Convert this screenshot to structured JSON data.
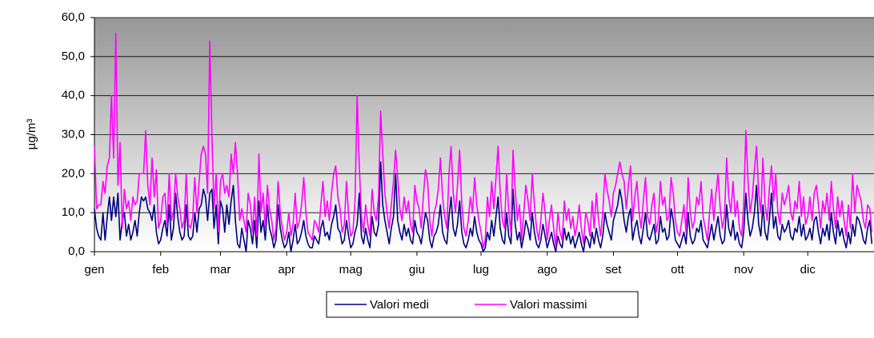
{
  "chart_data": {
    "type": "line",
    "ylabel": "µg/m³",
    "ylim": [
      0,
      60
    ],
    "yticks": [
      {
        "value": 0,
        "label": "0,0"
      },
      {
        "value": 10,
        "label": "10,0"
      },
      {
        "value": 20,
        "label": "20,0"
      },
      {
        "value": 30,
        "label": "30,0"
      },
      {
        "value": 40,
        "label": "40,0"
      },
      {
        "value": 50,
        "label": "50,0"
      },
      {
        "value": 60,
        "label": "60,0"
      }
    ],
    "xlim": [
      0,
      365
    ],
    "xticks": [
      {
        "value": 0,
        "label": "gen"
      },
      {
        "value": 31,
        "label": "feb"
      },
      {
        "value": 59,
        "label": "mar"
      },
      {
        "value": 90,
        "label": "apr"
      },
      {
        "value": 120,
        "label": "mag"
      },
      {
        "value": 151,
        "label": "giu"
      },
      {
        "value": 181,
        "label": "lug"
      },
      {
        "value": 212,
        "label": "ago"
      },
      {
        "value": 243,
        "label": "set"
      },
      {
        "value": 273,
        "label": "ott"
      },
      {
        "value": 304,
        "label": "nov"
      },
      {
        "value": 334,
        "label": "dic"
      }
    ],
    "grid": true,
    "legend": "bottom",
    "series": [
      {
        "name": "Valori medi",
        "color": "#000080",
        "values": [
          11,
          6,
          4,
          3,
          10,
          3,
          9,
          14,
          8,
          14,
          9,
          15,
          3,
          8,
          10,
          4,
          7,
          3,
          5,
          8,
          4,
          10,
          14,
          13,
          14,
          11,
          10,
          8,
          12,
          5,
          2,
          3,
          6,
          8,
          4,
          12,
          3,
          6,
          15,
          9,
          5,
          3,
          4,
          12,
          4,
          3,
          4,
          10,
          5,
          11,
          12,
          16,
          14,
          8,
          15,
          16,
          6,
          12,
          2,
          13,
          11,
          5,
          12,
          7,
          13,
          17,
          8,
          2,
          1,
          6,
          3,
          0,
          8,
          6,
          2,
          8,
          1,
          13,
          5,
          8,
          3,
          12,
          6,
          4,
          1,
          3,
          12,
          6,
          3,
          1,
          2,
          5,
          0,
          3,
          7,
          2,
          3,
          5,
          8,
          4,
          2,
          1,
          1,
          4,
          3,
          2,
          6,
          8,
          4,
          5,
          3,
          7,
          9,
          12,
          6,
          5,
          2,
          3,
          8,
          4,
          1,
          2,
          5,
          7,
          15,
          4,
          2,
          6,
          3,
          1,
          9,
          5,
          4,
          7,
          23,
          12,
          8,
          5,
          2,
          6,
          9,
          20,
          8,
          5,
          3,
          7,
          4,
          6,
          3,
          2,
          8,
          5,
          4,
          2,
          6,
          10,
          8,
          3,
          1,
          4,
          5,
          7,
          12,
          5,
          3,
          2,
          9,
          14,
          6,
          4,
          7,
          13,
          5,
          2,
          1,
          3,
          6,
          4,
          9,
          5,
          3,
          2,
          0,
          1,
          5,
          3,
          8,
          4,
          9,
          14,
          6,
          3,
          2,
          10,
          4,
          2,
          16,
          7,
          3,
          5,
          1,
          4,
          8,
          6,
          3,
          10,
          5,
          2,
          1,
          3,
          7,
          4,
          1,
          3,
          5,
          2,
          0,
          4,
          2,
          1,
          6,
          3,
          5,
          2,
          4,
          1,
          3,
          5,
          2,
          0,
          4,
          3,
          1,
          5,
          2,
          6,
          3,
          1,
          4,
          10,
          7,
          5,
          3,
          8,
          10,
          12,
          16,
          13,
          8,
          5,
          9,
          11,
          3,
          6,
          8,
          4,
          2,
          6,
          10,
          4,
          3,
          5,
          7,
          2,
          3,
          9,
          5,
          6,
          3,
          4,
          11,
          8,
          3,
          2,
          1,
          3,
          5,
          2,
          10,
          4,
          2,
          3,
          6,
          5,
          8,
          3,
          2,
          1,
          4,
          7,
          3,
          6,
          9,
          4,
          2,
          3,
          12,
          6,
          4,
          8,
          3,
          5,
          2,
          1,
          5,
          15,
          8,
          4,
          6,
          10,
          17,
          7,
          4,
          12,
          5,
          3,
          8,
          15,
          6,
          9,
          4,
          3,
          7,
          5,
          6,
          8,
          4,
          3,
          6,
          5,
          9,
          4,
          7,
          3,
          4,
          6,
          3,
          8,
          9,
          5,
          2,
          6,
          4,
          7,
          3,
          10,
          5,
          2,
          8,
          4,
          6,
          3,
          1,
          5,
          2,
          7,
          4,
          9,
          8,
          6,
          3,
          2,
          6,
          8,
          2
        ]
      },
      {
        "name": "Valori massimi",
        "color": "#ff00ff",
        "values": [
          27,
          11,
          12,
          12,
          18,
          15,
          22,
          24,
          40,
          24,
          56,
          17,
          28,
          6,
          16,
          11,
          13,
          8,
          14,
          12,
          13,
          20,
          20,
          20,
          31,
          17,
          12,
          24,
          14,
          21,
          6,
          8,
          14,
          15,
          7,
          20,
          8,
          10,
          20,
          14,
          11,
          6,
          8,
          20,
          7,
          6,
          9,
          19,
          10,
          18,
          25,
          27,
          25,
          15,
          54,
          30,
          11,
          20,
          5,
          18,
          20,
          15,
          17,
          14,
          25,
          20,
          28,
          20,
          8,
          11,
          8,
          5,
          15,
          12,
          5,
          14,
          4,
          25,
          10,
          15,
          6,
          17,
          11,
          8,
          3,
          6,
          18,
          10,
          6,
          3,
          5,
          10,
          4,
          7,
          15,
          6,
          8,
          12,
          19,
          10,
          5,
          4,
          3,
          8,
          7,
          5,
          12,
          18,
          9,
          13,
          8,
          15,
          20,
          22,
          14,
          11,
          5,
          7,
          18,
          9,
          4,
          5,
          13,
          40,
          22,
          9,
          5,
          12,
          7,
          4,
          16,
          10,
          8,
          14,
          36,
          25,
          15,
          10,
          6,
          12,
          18,
          26,
          19,
          11,
          8,
          14,
          10,
          13,
          7,
          5,
          17,
          13,
          11,
          6,
          14,
          21,
          18,
          8,
          4,
          10,
          12,
          16,
          24,
          14,
          9,
          6,
          20,
          27,
          15,
          10,
          17,
          26,
          12,
          6,
          4,
          8,
          14,
          10,
          19,
          12,
          8,
          5,
          1,
          3,
          14,
          9,
          18,
          11,
          19,
          27,
          15,
          8,
          6,
          20,
          10,
          5,
          26,
          16,
          8,
          12,
          3,
          10,
          17,
          13,
          8,
          20,
          12,
          6,
          3,
          8,
          15,
          10,
          3,
          8,
          12,
          6,
          1,
          10,
          5,
          3,
          13,
          8,
          11,
          6,
          9,
          4,
          7,
          12,
          6,
          2,
          10,
          8,
          4,
          13,
          6,
          15,
          8,
          4,
          10,
          20,
          16,
          13,
          9,
          15,
          17,
          20,
          23,
          20,
          18,
          11,
          17,
          22,
          8,
          14,
          18,
          10,
          6,
          13,
          19,
          9,
          7,
          12,
          15,
          5,
          8,
          18,
          12,
          14,
          8,
          9,
          19,
          15,
          8,
          5,
          4,
          8,
          12,
          5,
          19,
          10,
          6,
          8,
          14,
          12,
          18,
          9,
          6,
          3,
          10,
          16,
          8,
          15,
          20,
          11,
          6,
          9,
          24,
          14,
          10,
          18,
          9,
          13,
          6,
          4,
          12,
          31,
          18,
          10,
          14,
          21,
          27,
          15,
          10,
          24,
          12,
          8,
          16,
          22,
          13,
          20,
          10,
          7,
          15,
          12,
          14,
          17,
          10,
          8,
          13,
          11,
          18,
          9,
          14,
          7,
          9,
          14,
          8,
          15,
          17,
          12,
          6,
          13,
          10,
          15,
          8,
          18,
          11,
          6,
          14,
          9,
          13,
          8,
          4,
          12,
          6,
          20,
          10,
          17,
          15,
          13,
          8,
          6,
          12,
          11,
          5
        ]
      }
    ]
  }
}
